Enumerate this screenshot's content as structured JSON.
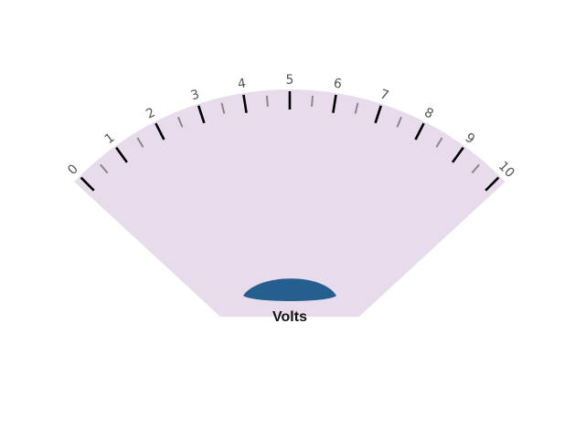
{
  "gauge": {
    "unit_label": "Volts",
    "min": 0,
    "max": 10,
    "major_step": 1,
    "minor_step": 0.5,
    "value": null,
    "tick_labels": [
      "0",
      "1",
      "2",
      "3",
      "4",
      "5",
      "6",
      "7",
      "8",
      "9",
      "10"
    ],
    "colors": {
      "dial_face": "#e8dcec",
      "hub": "#245f8f",
      "major_tick": "#000000",
      "minor_tick": "#888888",
      "label": "#555555",
      "unit_text": "#111111"
    }
  }
}
